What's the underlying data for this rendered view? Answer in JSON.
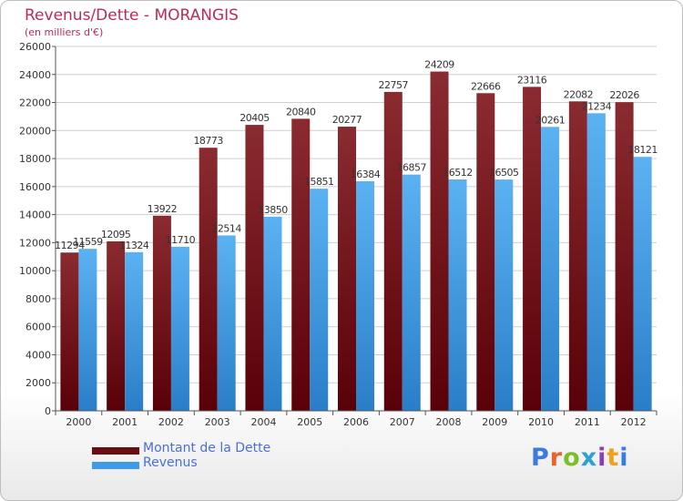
{
  "title": "Revenus/Dette - MORANGIS",
  "subtitle": "(en milliers d'€)",
  "logo": {
    "text": "Proxiti",
    "letter_colors": [
      "#3a7be0",
      "#e8642a",
      "#7bbf2a",
      "#2da0d8",
      "#8a3fb5",
      "#f0a020",
      "#3a7be0"
    ]
  },
  "legend": [
    {
      "label": "Montant de la Dette",
      "color": "#6b0c12"
    },
    {
      "label": "Revenus",
      "color": "#3f9ae8"
    }
  ],
  "chart_data": {
    "type": "bar",
    "title": "Revenus/Dette - MORANGIS",
    "subtitle": "(en milliers d'€)",
    "xlabel": "",
    "ylabel": "",
    "categories": [
      "2000",
      "2001",
      "2002",
      "2003",
      "2004",
      "2005",
      "2006",
      "2007",
      "2008",
      "2009",
      "2010",
      "2011",
      "2012"
    ],
    "series": [
      {
        "name": "Montant de la Dette",
        "color": "#6b0c12",
        "values": [
          11294,
          12095,
          13922,
          18773,
          20405,
          20840,
          20277,
          22757,
          24209,
          22666,
          23116,
          22082,
          22026
        ]
      },
      {
        "name": "Revenus",
        "color": "#3f9ae8",
        "values": [
          11559,
          11324,
          11710,
          12514,
          13850,
          15851,
          16384,
          16857,
          16512,
          16505,
          20261,
          21234,
          18121
        ]
      }
    ],
    "ylim": [
      0,
      26000
    ],
    "yticks": [
      0,
      2000,
      4000,
      6000,
      8000,
      10000,
      12000,
      14000,
      16000,
      18000,
      20000,
      22000,
      24000,
      26000
    ],
    "grid": true,
    "legend_position": "bottom-left"
  }
}
